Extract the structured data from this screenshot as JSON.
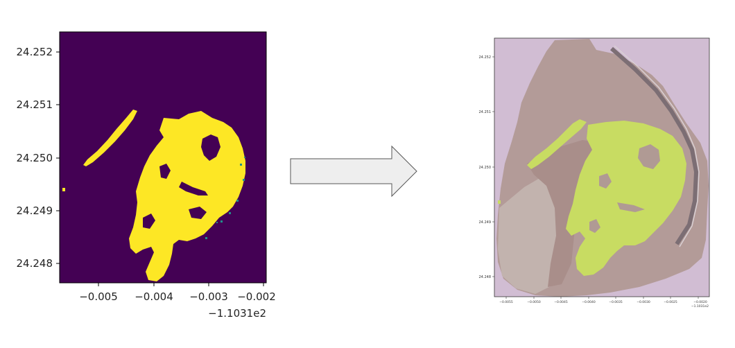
{
  "left_plot": {
    "y_ticks": [
      "24.252",
      "24.251",
      "24.250",
      "24.249",
      "24.248"
    ],
    "x_ticks": [
      "−0.005",
      "−0.004",
      "−0.003",
      "−0.002"
    ],
    "x_offset": "−1.1031e2",
    "colors": {
      "background": "#440154",
      "mask": "#fde725",
      "edge": "#21918c"
    }
  },
  "right_plot": {
    "y_ticks": [
      "24.252",
      "24.251",
      "24.250",
      "24.249",
      "24.248"
    ],
    "x_ticks": [
      "−0.0055",
      "−0.0050",
      "−0.0045",
      "−0.0040",
      "−0.0035",
      "−0.0030",
      "−0.0025",
      "−0.0020"
    ],
    "x_offset": "−1.1031e2",
    "colors": {
      "background": "#d1bdd3",
      "mangrove": "#c8dc62",
      "mudflat": "#b09a94"
    }
  },
  "arrow": {
    "fill": "#eeeeee",
    "stroke": "#555555",
    "icon": "right-arrow-icon"
  }
}
